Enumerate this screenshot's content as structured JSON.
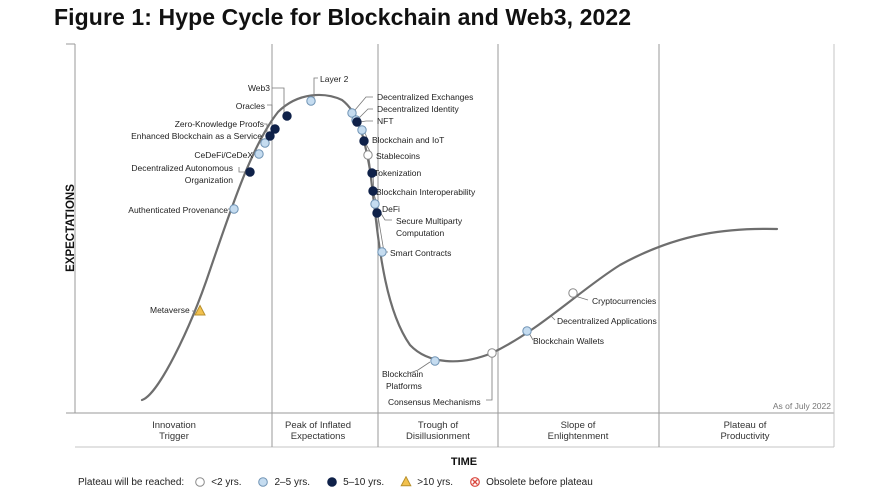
{
  "title": "Figure 1: Hype Cycle for Blockchain and Web3, 2022",
  "y_axis_label": "EXPECTATIONS",
  "x_axis_label": "TIME",
  "as_of": "As of July 2022",
  "phases": [
    {
      "lines": [
        "Innovation",
        "Trigger"
      ]
    },
    {
      "lines": [
        "Peak of Inflated",
        "Expectations"
      ]
    },
    {
      "lines": [
        "Trough of",
        "Disillusionment"
      ]
    },
    {
      "lines": [
        "Slope of",
        "Enlightenment"
      ]
    },
    {
      "lines": [
        "Plateau of",
        "Productivity"
      ]
    }
  ],
  "legend": {
    "caption": "Plateau will be reached:",
    "items": [
      {
        "key": "lt2",
        "label": "<2 yrs."
      },
      {
        "key": "2to5",
        "label": "2–5 yrs."
      },
      {
        "key": "5to10",
        "label": "5–10 yrs."
      },
      {
        "key": "gt10",
        "label": ">10 yrs."
      },
      {
        "key": "obsolete",
        "label": "Obsolete before plateau"
      }
    ]
  },
  "marker_styles": {
    "lt2": {
      "shape": "circle",
      "fill": "#ffffff",
      "stroke": "#8a8a8a"
    },
    "2to5": {
      "shape": "circle",
      "fill": "#c5dcf0",
      "stroke": "#6f93b4"
    },
    "5to10": {
      "shape": "circle",
      "fill": "#0f2149",
      "stroke": "#0f2149"
    },
    "gt10": {
      "shape": "triangle",
      "fill": "#f2c14e",
      "stroke": "#b8902c"
    },
    "obsolete": {
      "shape": "xcircle",
      "fill": "#ffffff",
      "stroke": "#d9443b"
    }
  },
  "colors": {
    "curve": "#6e6e6e",
    "grid": "#9a9a9a",
    "text": "#222222",
    "leader": "#777777"
  },
  "technologies": [
    {
      "name": "Metaverse",
      "cat": "gt10"
    },
    {
      "name": "Authenticated Provenance",
      "cat": "2to5"
    },
    {
      "name": "Decentralized Autonomous Organization",
      "cat": "5to10"
    },
    {
      "name": "CeDeFi/CeDeX",
      "cat": "2to5"
    },
    {
      "name": "Enhanced Blockchain as a Service",
      "cat": "2to5"
    },
    {
      "name": "Zero-Knowledge Proofs",
      "cat": "5to10"
    },
    {
      "name": "Oracles",
      "cat": "5to10"
    },
    {
      "name": "Web3",
      "cat": "5to10"
    },
    {
      "name": "Layer 2",
      "cat": "2to5"
    },
    {
      "name": "Decentralized Exchanges",
      "cat": "2to5"
    },
    {
      "name": "Decentralized Identity",
      "cat": "2to5"
    },
    {
      "name": "NFT",
      "cat": "5to10"
    },
    {
      "name": "Blockchain and IoT",
      "cat": "2to5"
    },
    {
      "name": "Stablecoins",
      "cat": "5to10"
    },
    {
      "name": "Tokenization",
      "cat": "lt2"
    },
    {
      "name": "Blockchain Interoperability",
      "cat": "5to10"
    },
    {
      "name": "DeFi",
      "cat": "5to10"
    },
    {
      "name": "Secure Multiparty Computation",
      "cat": "2to5"
    },
    {
      "name": "Smart Contracts",
      "cat": "5to10"
    },
    {
      "name": "Blockchain Platforms",
      "cat": "2to5"
    },
    {
      "name": "Consensus Mechanisms",
      "cat": "2to5"
    },
    {
      "name": "Blockchain Wallets",
      "cat": "lt2"
    },
    {
      "name": "Decentralized Applications",
      "cat": "2to5"
    },
    {
      "name": "Cryptocurrencies",
      "cat": "lt2"
    }
  ]
}
